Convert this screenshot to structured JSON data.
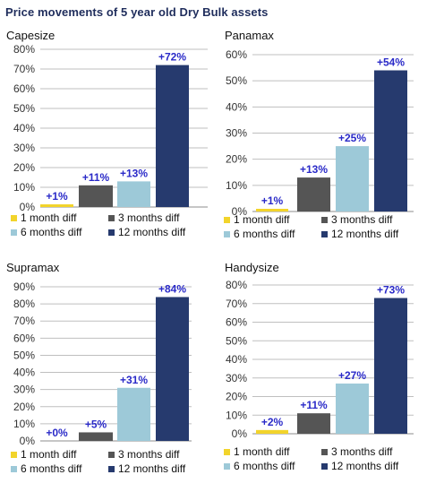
{
  "title": "Price movements of 5 year old Dry Bulk assets",
  "colors": {
    "title": "#1f2d5c",
    "data_label": "#2a2ac8",
    "gridline": "#bfbfbf",
    "axis": "#8c8c8c"
  },
  "legend": [
    {
      "label": "1 month diff",
      "color": "#f2d42b"
    },
    {
      "label": "3 months diff",
      "color": "#555555"
    },
    {
      "label": "6 months diff",
      "color": "#9dc9d8"
    },
    {
      "label": "12 months diff",
      "color": "#263a6e"
    }
  ],
  "chart_data": [
    {
      "type": "bar",
      "title": "Capesize",
      "categories": [
        "1 month diff",
        "3 months diff",
        "6 months diff",
        "12 months diff"
      ],
      "values": [
        1,
        11,
        13,
        72
      ],
      "data_labels": [
        "+1%",
        "+11%",
        "+13%",
        "+72%"
      ],
      "ylim": [
        0,
        80
      ],
      "yticks": [
        "0%",
        "10%",
        "20%",
        "30%",
        "40%",
        "50%",
        "60%",
        "70%",
        "80%"
      ],
      "grid": true,
      "legend_position": "bottom"
    },
    {
      "type": "bar",
      "title": "Panamax",
      "categories": [
        "1 month diff",
        "3 months diff",
        "6 months diff",
        "12 months diff"
      ],
      "values": [
        1,
        13,
        25,
        54
      ],
      "data_labels": [
        "+1%",
        "+13%",
        "+25%",
        "+54%"
      ],
      "ylim": [
        0,
        60
      ],
      "yticks": [
        "0%",
        "10%",
        "20%",
        "30%",
        "40%",
        "50%",
        "60%"
      ],
      "grid": true,
      "legend_position": "bottom"
    },
    {
      "type": "bar",
      "title": "Supramax",
      "categories": [
        "1 month diff",
        "3 months diff",
        "6 months diff",
        "12 months diff"
      ],
      "values": [
        0,
        5,
        31,
        84
      ],
      "data_labels": [
        "+0%",
        "+5%",
        "+31%",
        "+84%"
      ],
      "ylim": [
        0,
        90
      ],
      "yticks": [
        "0%",
        "10%",
        "20%",
        "30%",
        "40%",
        "50%",
        "60%",
        "70%",
        "80%",
        "90%"
      ],
      "grid": true,
      "legend_position": "bottom"
    },
    {
      "type": "bar",
      "title": "Handysize",
      "categories": [
        "1 month diff",
        "3 months diff",
        "6 months diff",
        "12 months diff"
      ],
      "values": [
        2,
        11,
        27,
        73
      ],
      "data_labels": [
        "+2%",
        "+11%",
        "+27%",
        "+73%"
      ],
      "ylim": [
        0,
        80
      ],
      "yticks": [
        "0%",
        "10%",
        "20%",
        "30%",
        "40%",
        "50%",
        "60%",
        "70%",
        "80%"
      ],
      "grid": true,
      "legend_position": "bottom"
    }
  ]
}
